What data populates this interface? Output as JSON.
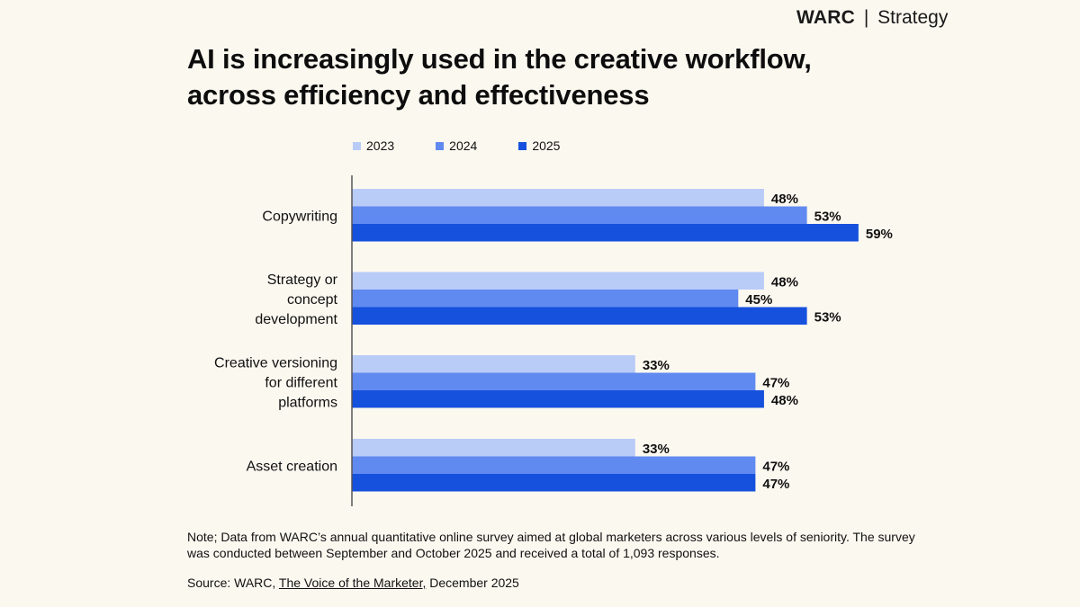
{
  "brand": {
    "name": "WARC",
    "separator": "|",
    "section": "Strategy"
  },
  "title_lines": [
    "AI is increasingly used in the creative workflow,",
    "across efficiency and effectiveness"
  ],
  "colors": {
    "2023": "#b9cbf7",
    "2024": "#618af0",
    "2025": "#1651dd",
    "axis": "#555555"
  },
  "chart_data": {
    "type": "bar",
    "orientation": "horizontal",
    "title": "AI is increasingly used in the creative workflow, across efficiency and effectiveness",
    "categories": [
      [
        "Copywriting"
      ],
      [
        "Strategy or",
        "concept",
        "development"
      ],
      [
        "Creative versioning",
        "for different",
        "platforms"
      ],
      [
        "Asset creation"
      ]
    ],
    "category_names": [
      "Copywriting",
      "Strategy or concept development",
      "Creative versioning for different platforms",
      "Asset creation"
    ],
    "series": [
      {
        "name": "2023",
        "values": [
          48,
          48,
          33,
          33
        ]
      },
      {
        "name": "2024",
        "values": [
          53,
          45,
          47,
          47
        ]
      },
      {
        "name": "2025",
        "values": [
          59,
          53,
          48,
          47
        ]
      }
    ],
    "value_suffix": "%",
    "xlim": [
      0,
      60
    ],
    "xlabel": "",
    "ylabel": "",
    "grid": false,
    "legend_position": "top"
  },
  "note": "Note; Data from WARC’s annual quantitative online survey aimed at global marketers across various levels of seniority. The survey was conducted between September and October 2025 and received a total of 1,093 responses.",
  "source": {
    "prefix": "Source: WARC, ",
    "link": "The Voice of the Marketer,",
    "suffix": " December 2025"
  }
}
